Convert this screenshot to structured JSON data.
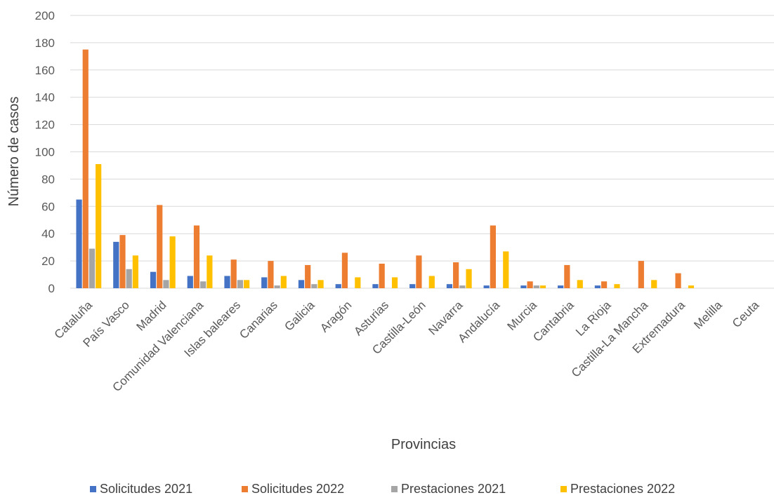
{
  "chart_data": {
    "type": "bar",
    "xlabel": "Provincias",
    "ylabel": "Número de casos",
    "ylim": [
      0,
      200
    ],
    "yticks": [
      0,
      20,
      40,
      60,
      80,
      100,
      120,
      140,
      160,
      180,
      200
    ],
    "grid": true,
    "legend_position": "bottom",
    "categories": [
      "Cataluña",
      "País Vasco",
      "Madrid",
      "Comunidad Valenciana",
      "Islas baleares",
      "Canarias",
      "Galicia",
      "Aragón",
      "Asturias",
      "Castilla-León",
      "Navarra",
      "Andalucía",
      "Murcia",
      "Cantabria",
      "La Rioja",
      "Castilla-La Mancha",
      "Extremadura",
      "Melilla",
      "Ceuta"
    ],
    "series": [
      {
        "name": "Solicitudes 2021",
        "color": "#4472C4",
        "values": [
          65,
          34,
          12,
          9,
          9,
          8,
          6,
          3,
          3,
          3,
          3,
          2,
          2,
          2,
          2,
          0,
          0,
          0,
          0
        ]
      },
      {
        "name": "Solicitudes 2022",
        "color": "#ED7D31",
        "values": [
          175,
          39,
          61,
          46,
          21,
          20,
          17,
          26,
          18,
          24,
          19,
          46,
          5,
          17,
          5,
          20,
          11,
          0,
          0
        ]
      },
      {
        "name": "Prestaciones 2021",
        "color": "#A5A5A5",
        "values": [
          29,
          14,
          6,
          5,
          6,
          2,
          3,
          0,
          0,
          0,
          2,
          0,
          2,
          0,
          0,
          0,
          0,
          0,
          0
        ]
      },
      {
        "name": "Prestaciones 2022",
        "color": "#FFC000",
        "values": [
          91,
          24,
          38,
          24,
          6,
          9,
          6,
          8,
          8,
          9,
          14,
          27,
          2,
          6,
          3,
          6,
          2,
          0,
          0
        ]
      }
    ]
  }
}
